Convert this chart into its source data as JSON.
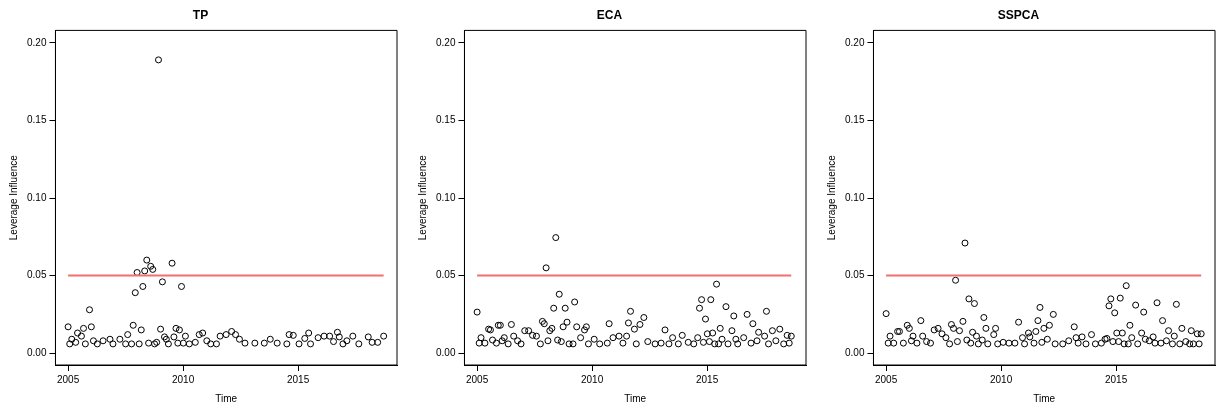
{
  "chart_data": [
    {
      "type": "scatter",
      "title": "TP",
      "xlabel": "Time",
      "ylabel": "Leverage Influence",
      "grid": false,
      "marker": "circle",
      "xlim": [
        2004.45,
        2019.3
      ],
      "ylim": [
        -0.0076,
        0.208
      ],
      "xticks": [
        2005,
        2010,
        2015
      ],
      "yticks": [
        {
          "value": 0,
          "label": "0.00"
        },
        {
          "value": 0.05,
          "label": "0.05"
        },
        {
          "value": 0.1,
          "label": "0.10"
        },
        {
          "value": 0.15,
          "label": "0.15"
        },
        {
          "value": 0.2,
          "label": "0.20"
        }
      ],
      "ref_lines": [
        {
          "axis": "y",
          "value": 0.05,
          "color": "#f07070"
        }
      ],
      "series": [
        {
          "color": "#000000",
          "x": [
            2005.0,
            2005.07,
            2005.16,
            2005.33,
            2005.41,
            2005.58,
            2005.67,
            2005.75,
            2005.93,
            2006.01,
            2006.1,
            2006.27,
            2006.52,
            2006.82,
            2006.95,
            2007.25,
            2007.5,
            2007.59,
            2007.76,
            2007.83,
            2007.92,
            2008.0,
            2008.09,
            2008.18,
            2008.25,
            2008.33,
            2008.42,
            2008.5,
            2008.59,
            2008.68,
            2008.76,
            2008.85,
            2008.93,
            2009.02,
            2009.1,
            2009.19,
            2009.27,
            2009.36,
            2009.52,
            2009.6,
            2009.69,
            2009.77,
            2009.84,
            2009.93,
            2010.01,
            2010.1,
            2010.27,
            2010.53,
            2010.7,
            2010.85,
            2011.03,
            2011.2,
            2011.45,
            2011.61,
            2011.87,
            2012.11,
            2012.28,
            2012.45,
            2012.69,
            2013.12,
            2013.53,
            2013.79,
            2014.09,
            2014.51,
            2014.61,
            2014.79,
            2015.04,
            2015.29,
            2015.46,
            2015.54,
            2015.87,
            2016.13,
            2016.37,
            2016.54,
            2016.71,
            2016.79,
            2016.95,
            2017.12,
            2017.38,
            2017.64,
            2018.05,
            2018.22,
            2018.46,
            2018.72
          ],
          "values": [
            0.017,
            0.006,
            0.009,
            0.007,
            0.013,
            0.011,
            0.016,
            0.006,
            0.028,
            0.017,
            0.008,
            0.006,
            0.008,
            0.009,
            0.006,
            0.009,
            0.006,
            0.012,
            0.006,
            0.018,
            0.039,
            0.052,
            0.006,
            0.015,
            0.043,
            0.053,
            0.06,
            0.0065,
            0.056,
            0.054,
            0.006,
            0.007,
            0.189,
            0.0155,
            0.046,
            0.0105,
            0.009,
            0.006,
            0.058,
            0.0105,
            0.016,
            0.0065,
            0.015,
            0.043,
            0.0065,
            0.011,
            0.006,
            0.007,
            0.012,
            0.013,
            0.008,
            0.006,
            0.006,
            0.011,
            0.012,
            0.014,
            0.012,
            0.009,
            0.0065,
            0.0065,
            0.0065,
            0.009,
            0.0065,
            0.006,
            0.012,
            0.0115,
            0.006,
            0.0095,
            0.013,
            0.006,
            0.01,
            0.011,
            0.011,
            0.0075,
            0.0135,
            0.0105,
            0.006,
            0.008,
            0.011,
            0.006,
            0.0105,
            0.007,
            0.007,
            0.011
          ]
        }
      ]
    },
    {
      "type": "scatter",
      "title": "ECA",
      "xlabel": "Time",
      "ylabel": "Leverage Influence",
      "grid": false,
      "marker": "circle",
      "xlim": [
        2004.45,
        2019.3
      ],
      "ylim": [
        -0.0076,
        0.208
      ],
      "xticks": [
        2005,
        2010,
        2015
      ],
      "yticks": [
        {
          "value": 0,
          "label": "0.00"
        },
        {
          "value": 0.05,
          "label": "0.05"
        },
        {
          "value": 0.1,
          "label": "0.10"
        },
        {
          "value": 0.15,
          "label": "0.15"
        },
        {
          "value": 0.2,
          "label": "0.20"
        }
      ],
      "ref_lines": [
        {
          "axis": "y",
          "value": 0.05,
          "color": "#f07070"
        }
      ],
      "series": [
        {
          "color": "#000000",
          "x": [
            2005.0,
            2005.09,
            2005.17,
            2005.34,
            2005.5,
            2005.58,
            2005.67,
            2005.84,
            2005.92,
            2006.01,
            2006.09,
            2006.18,
            2006.35,
            2006.49,
            2006.59,
            2006.76,
            2006.91,
            2007.07,
            2007.24,
            2007.41,
            2007.58,
            2007.75,
            2007.84,
            2007.92,
            2008.0,
            2008.08,
            2008.16,
            2008.25,
            2008.33,
            2008.42,
            2008.5,
            2008.57,
            2008.66,
            2008.74,
            2008.83,
            2008.91,
            2009.0,
            2009.17,
            2009.24,
            2009.33,
            2009.5,
            2009.67,
            2009.75,
            2009.84,
            2010.09,
            2010.33,
            2010.66,
            2010.74,
            2010.91,
            2011.17,
            2011.34,
            2011.5,
            2011.58,
            2011.67,
            2011.84,
            2011.92,
            2012.08,
            2012.25,
            2012.42,
            2012.74,
            2013.0,
            2013.17,
            2013.34,
            2013.5,
            2013.75,
            2013.92,
            2014.18,
            2014.42,
            2014.59,
            2014.67,
            2014.76,
            2014.84,
            2014.93,
            2015.01,
            2015.1,
            2015.16,
            2015.24,
            2015.33,
            2015.41,
            2015.5,
            2015.57,
            2015.65,
            2015.82,
            2015.91,
            2016.08,
            2016.16,
            2016.25,
            2016.33,
            2016.59,
            2016.74,
            2016.91,
            2016.99,
            2017.17,
            2017.24,
            2017.5,
            2017.58,
            2017.67,
            2017.84,
            2017.99,
            2018.16,
            2018.33,
            2018.48,
            2018.57,
            2018.66
          ],
          "values": [
            0.0265,
            0.0065,
            0.01,
            0.0065,
            0.0155,
            0.015,
            0.0085,
            0.0065,
            0.018,
            0.018,
            0.008,
            0.01,
            0.006,
            0.0185,
            0.011,
            0.008,
            0.006,
            0.0145,
            0.0145,
            0.0115,
            0.011,
            0.006,
            0.0205,
            0.019,
            0.055,
            0.008,
            0.0145,
            0.016,
            0.029,
            0.0745,
            0.0085,
            0.038,
            0.0075,
            0.017,
            0.029,
            0.02,
            0.006,
            0.006,
            0.033,
            0.017,
            0.01,
            0.015,
            0.017,
            0.006,
            0.009,
            0.006,
            0.0065,
            0.019,
            0.01,
            0.011,
            0.0065,
            0.011,
            0.0195,
            0.027,
            0.0155,
            0.006,
            0.0185,
            0.023,
            0.0075,
            0.006,
            0.0065,
            0.015,
            0.006,
            0.01,
            0.006,
            0.0115,
            0.007,
            0.006,
            0.01,
            0.029,
            0.0345,
            0.007,
            0.022,
            0.0125,
            0.0075,
            0.0345,
            0.013,
            0.006,
            0.0445,
            0.006,
            0.016,
            0.009,
            0.03,
            0.006,
            0.0145,
            0.024,
            0.009,
            0.006,
            0.01,
            0.025,
            0.0065,
            0.019,
            0.008,
            0.0135,
            0.011,
            0.027,
            0.006,
            0.0145,
            0.008,
            0.0155,
            0.006,
            0.0115,
            0.0065,
            0.011
          ]
        }
      ]
    },
    {
      "type": "scatter",
      "title": "SSPCA",
      "xlabel": "Time",
      "ylabel": "Leverage Influence",
      "grid": false,
      "marker": "circle",
      "xlim": [
        2004.45,
        2019.3
      ],
      "ylim": [
        -0.0076,
        0.208
      ],
      "xticks": [
        2005,
        2010,
        2015
      ],
      "yticks": [
        {
          "value": 0,
          "label": "0.00"
        },
        {
          "value": 0.05,
          "label": "0.05"
        },
        {
          "value": 0.1,
          "label": "0.10"
        },
        {
          "value": 0.15,
          "label": "0.15"
        },
        {
          "value": 0.2,
          "label": "0.20"
        }
      ],
      "ref_lines": [
        {
          "axis": "y",
          "value": 0.05,
          "color": "#f07070"
        }
      ],
      "series": [
        {
          "color": "#000000",
          "x": [
            2005.0,
            2005.09,
            2005.17,
            2005.33,
            2005.5,
            2005.58,
            2005.75,
            2005.92,
            2006.01,
            2006.1,
            2006.17,
            2006.34,
            2006.51,
            2006.59,
            2006.76,
            2006.93,
            2007.09,
            2007.26,
            2007.43,
            2007.6,
            2007.76,
            2007.84,
            2007.93,
            2008.02,
            2008.1,
            2008.19,
            2008.34,
            2008.43,
            2008.51,
            2008.6,
            2008.68,
            2008.76,
            2008.84,
            2008.93,
            2009.01,
            2009.18,
            2009.25,
            2009.34,
            2009.42,
            2009.68,
            2009.76,
            2009.85,
            2010.09,
            2010.34,
            2010.6,
            2010.76,
            2010.93,
            2011.02,
            2011.19,
            2011.25,
            2011.43,
            2011.51,
            2011.6,
            2011.69,
            2011.77,
            2011.86,
            2012.01,
            2012.1,
            2012.27,
            2012.35,
            2012.68,
            2012.94,
            2013.18,
            2013.26,
            2013.35,
            2013.52,
            2013.69,
            2013.93,
            2014.1,
            2014.36,
            2014.52,
            2014.6,
            2014.69,
            2014.77,
            2014.86,
            2014.94,
            2015.03,
            2015.11,
            2015.18,
            2015.27,
            2015.35,
            2015.44,
            2015.53,
            2015.6,
            2015.68,
            2015.85,
            2015.94,
            2016.11,
            2016.2,
            2016.27,
            2016.44,
            2016.61,
            2016.69,
            2016.78,
            2016.95,
            2017.02,
            2017.19,
            2017.28,
            2017.45,
            2017.53,
            2017.62,
            2017.77,
            2017.86,
            2018.03,
            2018.2,
            2018.27,
            2018.36,
            2018.53,
            2018.61,
            2018.7
          ],
          "values": [
            0.0255,
            0.0065,
            0.011,
            0.0065,
            0.014,
            0.014,
            0.0065,
            0.018,
            0.016,
            0.008,
            0.011,
            0.0065,
            0.021,
            0.011,
            0.0075,
            0.0065,
            0.015,
            0.016,
            0.0125,
            0.01,
            0.006,
            0.0185,
            0.016,
            0.047,
            0.0075,
            0.0145,
            0.0205,
            0.071,
            0.0085,
            0.035,
            0.0065,
            0.0135,
            0.032,
            0.011,
            0.006,
            0.0085,
            0.023,
            0.016,
            0.006,
            0.012,
            0.016,
            0.006,
            0.007,
            0.0065,
            0.0065,
            0.02,
            0.01,
            0.006,
            0.013,
            0.0105,
            0.0065,
            0.014,
            0.021,
            0.0295,
            0.007,
            0.016,
            0.009,
            0.018,
            0.025,
            0.006,
            0.006,
            0.008,
            0.017,
            0.01,
            0.0065,
            0.0105,
            0.006,
            0.012,
            0.006,
            0.0065,
            0.009,
            0.0095,
            0.0305,
            0.035,
            0.0075,
            0.026,
            0.013,
            0.0075,
            0.0355,
            0.013,
            0.006,
            0.0435,
            0.006,
            0.018,
            0.01,
            0.031,
            0.006,
            0.013,
            0.0265,
            0.009,
            0.008,
            0.0105,
            0.0065,
            0.0325,
            0.0065,
            0.021,
            0.008,
            0.0145,
            0.006,
            0.011,
            0.0315,
            0.006,
            0.016,
            0.0075,
            0.006,
            0.0145,
            0.006,
            0.0125,
            0.006,
            0.0125
          ]
        }
      ]
    }
  ]
}
